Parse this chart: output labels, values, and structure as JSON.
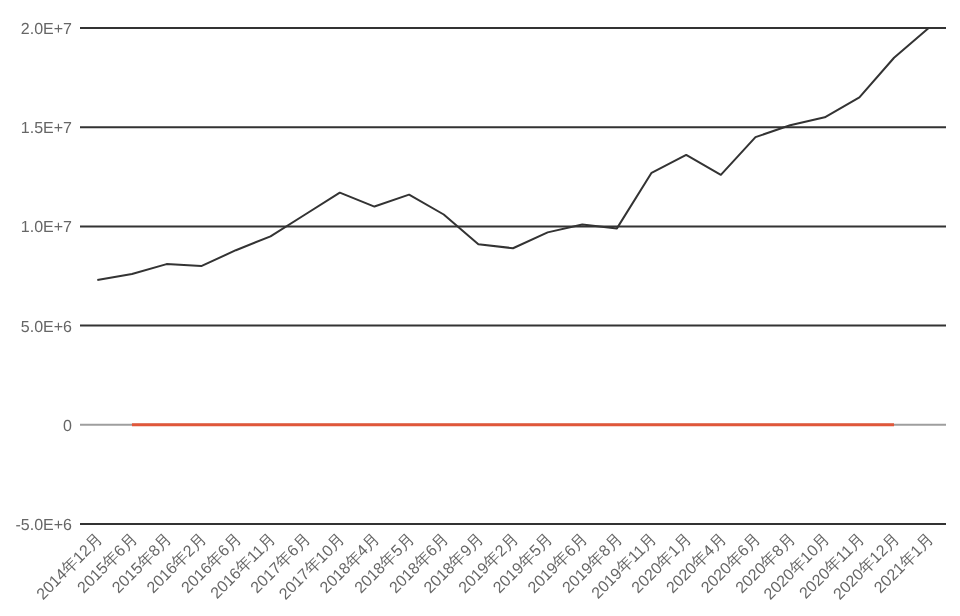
{
  "chart_data": {
    "type": "line",
    "categories": [
      "2014年12月",
      "2015年6月",
      "2015年8月",
      "2016年2月",
      "2016年6月",
      "2016年11月",
      "2017年6月",
      "2017年10月",
      "2018年4月",
      "2018年5月",
      "2018年6月",
      "2018年9月",
      "2019年2月",
      "2019年5月",
      "2019年6月",
      "2019年8月",
      "2019年11月",
      "2020年1月",
      "2020年4月",
      "2020年6月",
      "2020年8月",
      "2020年10月",
      "2020年11月",
      "2020年12月",
      "2021年1月"
    ],
    "series": [
      {
        "color": "#333333",
        "values": [
          7300000,
          7600000,
          8100000,
          8000000,
          8800000,
          9500000,
          10600000,
          11700000,
          11000000,
          11600000,
          10600000,
          9100000,
          8900000,
          9700000,
          10100000,
          9900000,
          12700000,
          13600000,
          12600000,
          14500000,
          15100000,
          15500000,
          16500000,
          18500000,
          20000000
        ]
      },
      {
        "color": "#e0573a",
        "values": [
          null,
          0,
          0,
          0,
          0,
          0,
          0,
          0,
          0,
          0,
          0,
          0,
          0,
          0,
          0,
          0,
          0,
          0,
          0,
          0,
          0,
          0,
          0,
          0,
          null
        ]
      }
    ],
    "ylim": [
      -5000000,
      20000000
    ],
    "yticks": [
      {
        "value": -5000000,
        "label": "-5.0E+6"
      },
      0,
      {
        "value": 5000000,
        "label": "5.0E+6"
      },
      {
        "value": 10000000,
        "label": "1.0E+7"
      },
      {
        "value": 15000000,
        "label": "1.5E+7"
      },
      {
        "value": 20000000,
        "label": "2.0E+7"
      }
    ],
    "grid": "y",
    "ref_lines": [
      {
        "axis": "y",
        "value": 0,
        "color": "#9e9e9e"
      }
    ],
    "marker": "none"
  }
}
